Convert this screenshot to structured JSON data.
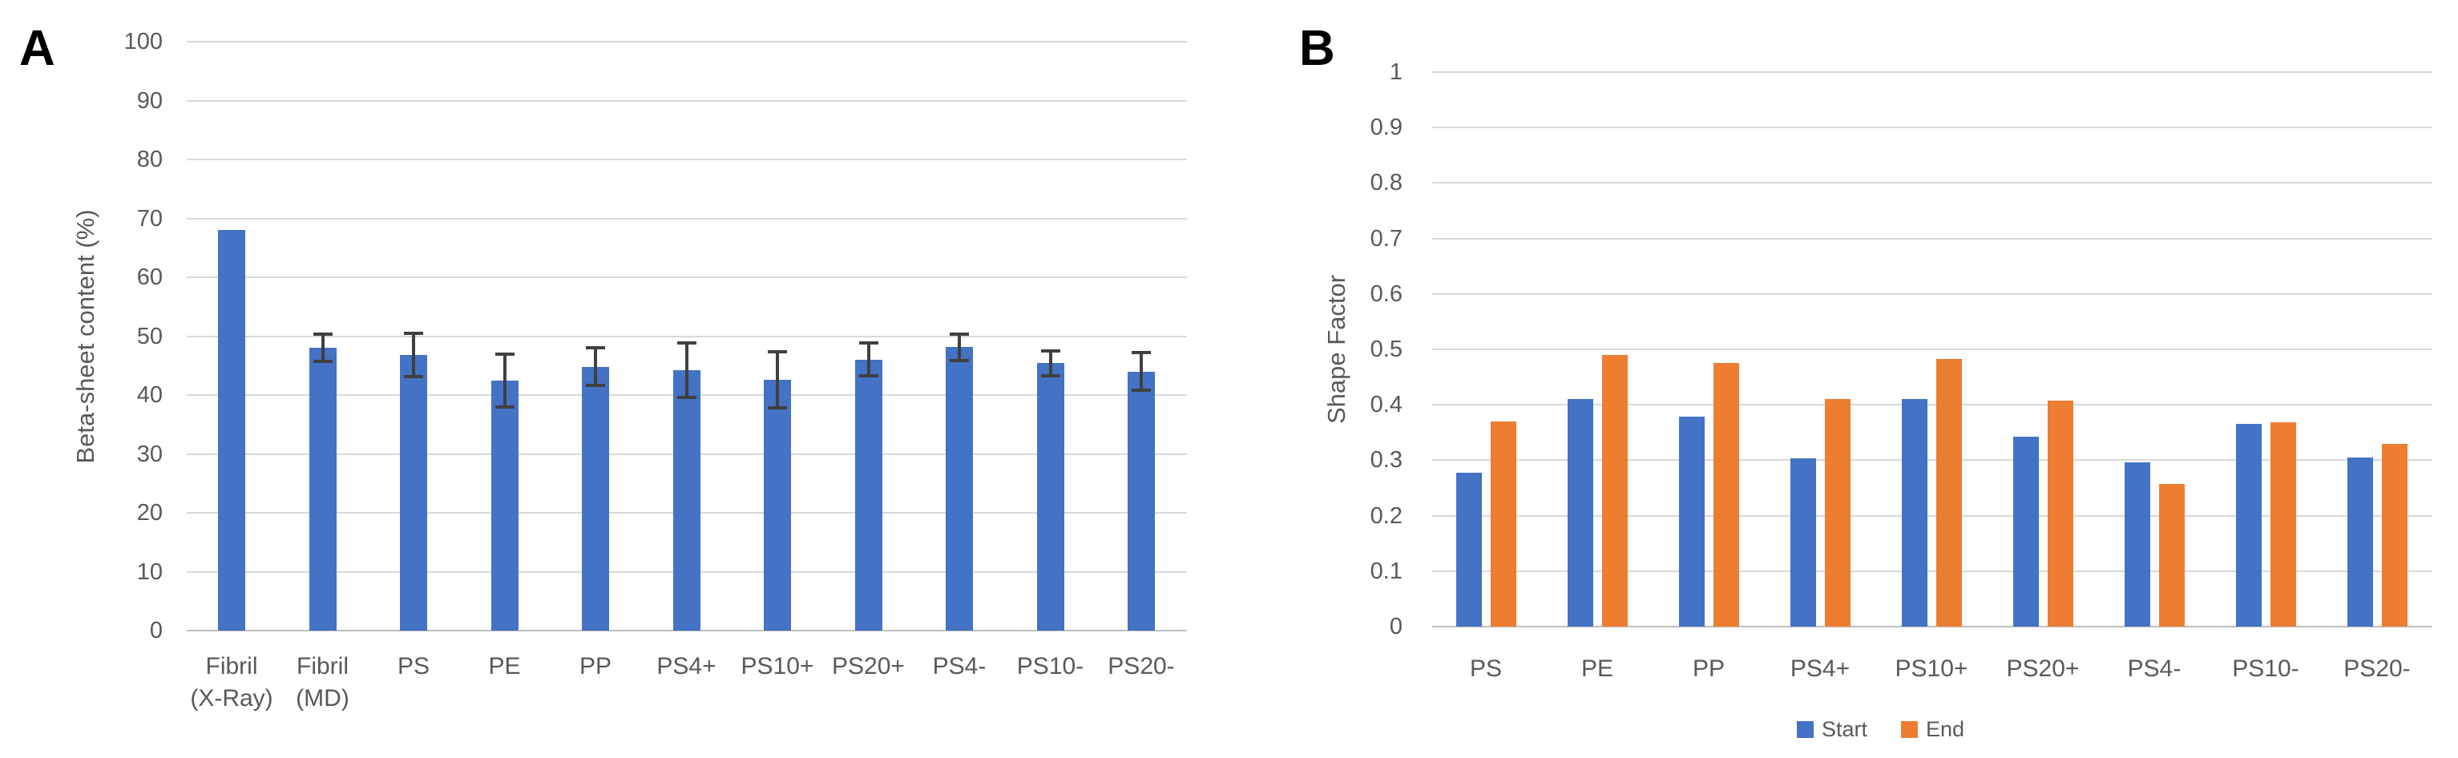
{
  "page": {
    "background": "#ffffff"
  },
  "panels": [
    {
      "label": "A"
    },
    {
      "label": "B"
    }
  ],
  "colors": {
    "bar_blue": "#4472C4",
    "bar_orange": "#ED7D31",
    "gridline": "#D9D9D9",
    "axis_line": "#BFBFBF",
    "error_bar": "#404040",
    "text_gray": "#595959",
    "panel_letter": "#000000"
  },
  "chart_data": [
    {
      "id": "A",
      "type": "bar",
      "title": "",
      "xlabel": "",
      "ylabel": "Beta-sheet content (%)",
      "ylim": [
        0,
        100
      ],
      "ytick_step": 10,
      "yticks": [
        "0",
        "10",
        "20",
        "30",
        "40",
        "50",
        "60",
        "70",
        "80",
        "90",
        "100"
      ],
      "grid": true,
      "legend_position": "none",
      "categories": [
        "Fibril\n(X-Ray)",
        "Fibril\n(MD)",
        "PS",
        "PE",
        "PP",
        "PS4+",
        "PS10+",
        "PS20+",
        "PS4-",
        "PS10-",
        "PS20-"
      ],
      "series": [
        {
          "name": "Beta-sheet content",
          "color": "#4472C4",
          "values": [
            68,
            48,
            46.8,
            42.5,
            44.8,
            44.2,
            42.6,
            46,
            48.1,
            45.4,
            44
          ],
          "errors": [
            null,
            2.3,
            3.7,
            4.5,
            3.2,
            4.6,
            4.8,
            2.8,
            2.2,
            2.1,
            3.2
          ]
        }
      ]
    },
    {
      "id": "B",
      "type": "bar",
      "title": "",
      "xlabel": "",
      "ylabel": "Shape Factor",
      "ylim": [
        0,
        1
      ],
      "ytick_step": 0.1,
      "yticks": [
        "0",
        "0.1",
        "0.2",
        "0.3",
        "0.4",
        "0.5",
        "0.6",
        "0.7",
        "0.8",
        "0.9",
        "1"
      ],
      "grid": true,
      "legend_position": "bottom",
      "categories": [
        "PS",
        "PE",
        "PP",
        "PS4+",
        "PS10+",
        "PS20+",
        "PS4-",
        "PS10-",
        "PS20-"
      ],
      "series": [
        {
          "name": "Start",
          "color": "#4472C4",
          "values": [
            0.277,
            0.411,
            0.379,
            0.304,
            0.41,
            0.343,
            0.296,
            0.366,
            0.305
          ]
        },
        {
          "name": "End",
          "color": "#ED7D31",
          "values": [
            0.37,
            0.49,
            0.475,
            0.41,
            0.483,
            0.408,
            0.257,
            0.368,
            0.329
          ]
        }
      ],
      "legend": {
        "items": [
          {
            "label": "Start",
            "color": "#4472C4"
          },
          {
            "label": "End",
            "color": "#ED7D31"
          }
        ]
      }
    }
  ]
}
